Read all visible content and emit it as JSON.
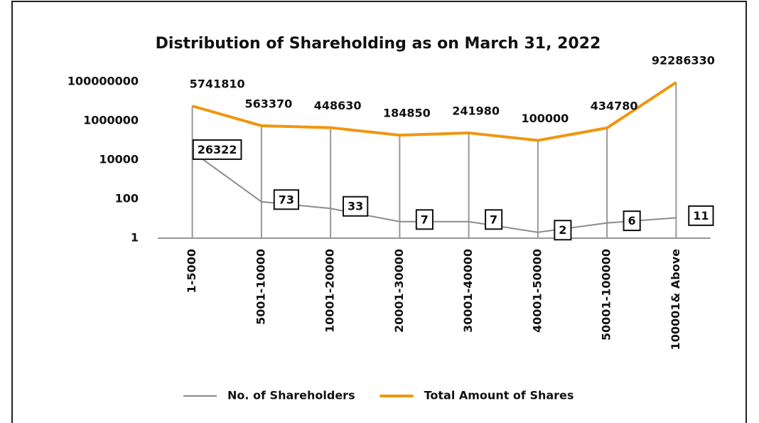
{
  "chart_data": {
    "type": "line",
    "title": "Distribution of Shareholding as on March 31, 2022",
    "categories": [
      "1-5000",
      "5001-10000",
      "10001-20000",
      "20001-30000",
      "30001-40000",
      "40001-50000",
      "50001-100000",
      "100001& Above"
    ],
    "series": [
      {
        "name": "No. of Shareholders",
        "color": "#8c8c8c",
        "values": [
          26322,
          73,
          33,
          7,
          7,
          2,
          6,
          11
        ]
      },
      {
        "name": "Total Amount of Shares",
        "color": "#f0960f",
        "values": [
          5741810,
          563370,
          448630,
          184850,
          241980,
          100000,
          434780,
          92286330
        ]
      }
    ],
    "ylim": [
      1,
      100000000
    ],
    "yticks": [
      1,
      100,
      10000,
      1000000,
      100000000
    ],
    "log_scale": true,
    "legend": "bottom"
  }
}
